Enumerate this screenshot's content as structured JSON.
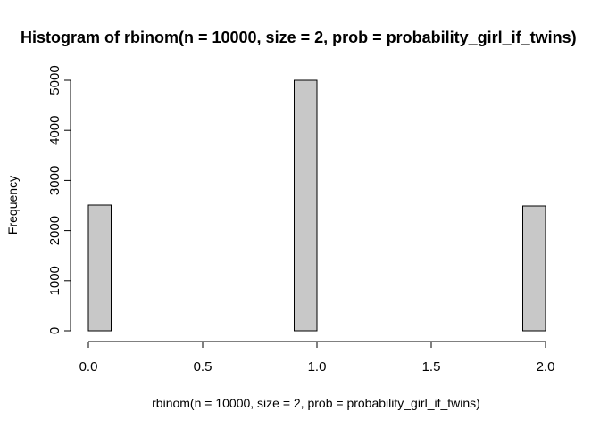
{
  "chart_data": {
    "type": "bar",
    "title": "Histogram of rbinom(n = 10000, size = 2, prob = probability_girl_if_twins)",
    "xlabel": "rbinom(n = 10000, size = 2, prob = probability_girl_if_twins)",
    "ylabel": "Frequency",
    "xlim": [
      0,
      2
    ],
    "ylim": [
      0,
      5000
    ],
    "x_ticks": [
      "0.0",
      "0.5",
      "1.0",
      "1.5",
      "2.0"
    ],
    "y_ticks": [
      "0",
      "1000",
      "2000",
      "3000",
      "4000",
      "5000"
    ],
    "bins": [
      {
        "start": 0.0,
        "end": 0.1,
        "count": 2510
      },
      {
        "start": 0.1,
        "end": 0.2,
        "count": 0
      },
      {
        "start": 0.2,
        "end": 0.3,
        "count": 0
      },
      {
        "start": 0.3,
        "end": 0.4,
        "count": 0
      },
      {
        "start": 0.4,
        "end": 0.5,
        "count": 0
      },
      {
        "start": 0.5,
        "end": 0.6,
        "count": 0
      },
      {
        "start": 0.6,
        "end": 0.7,
        "count": 0
      },
      {
        "start": 0.7,
        "end": 0.8,
        "count": 0
      },
      {
        "start": 0.8,
        "end": 0.9,
        "count": 0
      },
      {
        "start": 0.9,
        "end": 1.0,
        "count": 5000
      },
      {
        "start": 1.0,
        "end": 1.1,
        "count": 0
      },
      {
        "start": 1.1,
        "end": 1.2,
        "count": 0
      },
      {
        "start": 1.2,
        "end": 1.3,
        "count": 0
      },
      {
        "start": 1.3,
        "end": 1.4,
        "count": 0
      },
      {
        "start": 1.4,
        "end": 1.5,
        "count": 0
      },
      {
        "start": 1.5,
        "end": 1.6,
        "count": 0
      },
      {
        "start": 1.6,
        "end": 1.7,
        "count": 0
      },
      {
        "start": 1.7,
        "end": 1.8,
        "count": 0
      },
      {
        "start": 1.8,
        "end": 1.9,
        "count": 0
      },
      {
        "start": 1.9,
        "end": 2.0,
        "count": 2490
      }
    ],
    "grid": false,
    "legend": "none",
    "bar_fill": "#c8c8c8",
    "bar_stroke": "#000000"
  }
}
